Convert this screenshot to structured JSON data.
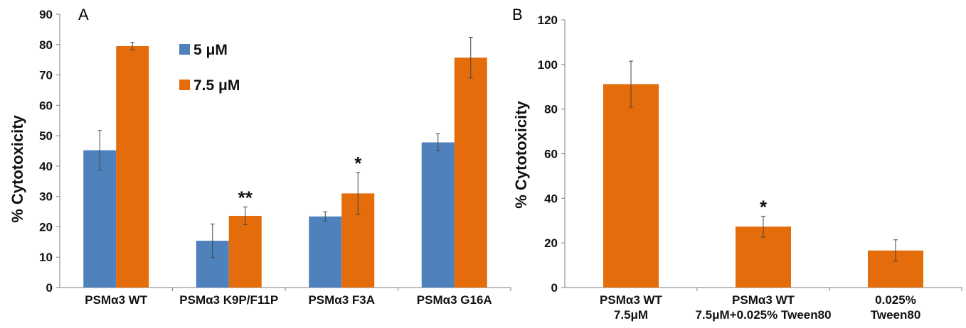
{
  "colors": {
    "series_5uM": "#4f81bd",
    "series_7_5uM": "#e46c0a",
    "axis": "#7f7f7f",
    "text": "#111111"
  },
  "chart_data": [
    {
      "panel": "A",
      "type": "bar",
      "ylabel": "% Cytotoxicity",
      "ylim": [
        0,
        90
      ],
      "yticks": [
        0,
        10,
        20,
        30,
        40,
        50,
        60,
        70,
        80,
        90
      ],
      "categories": [
        "PSMα3 WT",
        "PSMα3 K9P/F11P",
        "PSMα3 F3A",
        "PSMα3 G16A"
      ],
      "legend_placement": "top-center",
      "series": [
        {
          "name": "5 μM",
          "color": "#4f81bd",
          "values": [
            45.2,
            15.4,
            23.4,
            47.8
          ],
          "errors": [
            6.5,
            5.5,
            1.5,
            2.8
          ]
        },
        {
          "name": "7.5 μM",
          "color": "#e46c0a",
          "values": [
            79.5,
            23.6,
            31.0,
            75.7
          ],
          "errors": [
            1.2,
            2.9,
            6.9,
            6.7
          ]
        }
      ],
      "annotations": [
        {
          "series": 1,
          "category": 1,
          "text": "**"
        },
        {
          "series": 1,
          "category": 2,
          "text": "*"
        }
      ],
      "grid": false
    },
    {
      "panel": "B",
      "type": "bar",
      "ylabel": "% Cytotoxicity",
      "ylim": [
        0,
        120
      ],
      "yticks": [
        0,
        20,
        40,
        60,
        80,
        100,
        120
      ],
      "categories": [
        [
          "PSMα3 WT",
          "7.5μM"
        ],
        [
          "PSMα3 WT",
          "7.5μM+0.025% Tween80"
        ],
        [
          "0.025%",
          "Tween80"
        ]
      ],
      "series": [
        {
          "name": "",
          "color": "#e46c0a",
          "values": [
            91.2,
            27.3,
            16.6
          ],
          "errors": [
            10.3,
            4.7,
            4.8
          ]
        }
      ],
      "annotations": [
        {
          "series": 0,
          "category": 1,
          "text": "*"
        }
      ],
      "grid": false
    }
  ]
}
